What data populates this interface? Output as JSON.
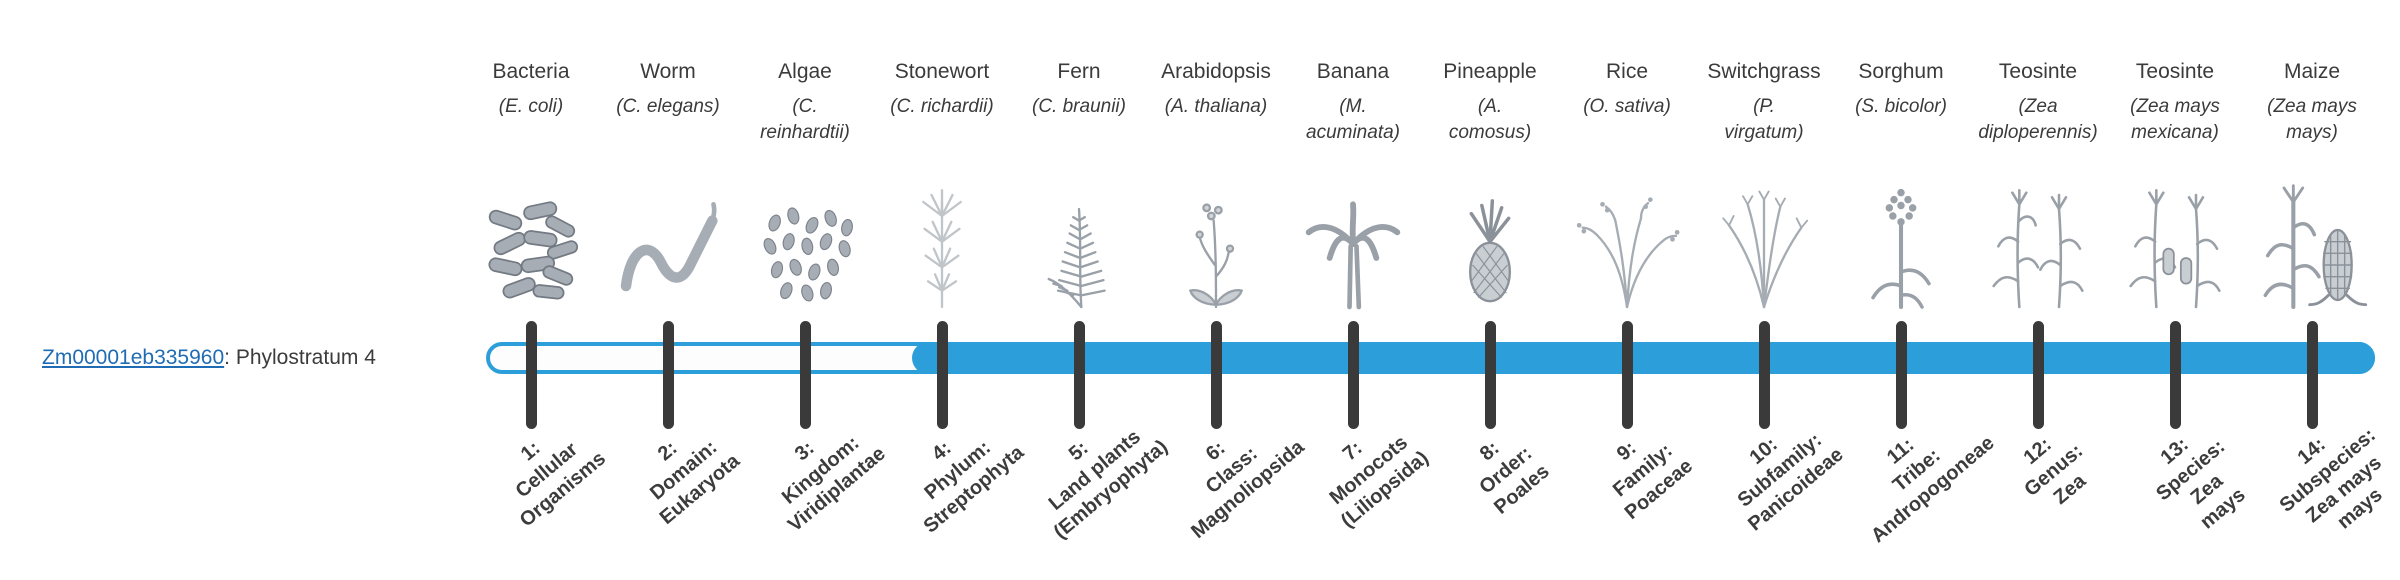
{
  "gene": {
    "id": "Zm00001eb335960",
    "suffix": ": Phylostratum 4",
    "link_color": "#1f6cb5"
  },
  "bar": {
    "color": "#2c9fda",
    "tick_color": "#3a3a3a",
    "filled_from_stratum": 4
  },
  "columns": [
    {
      "common": "Bacteria",
      "scientific": "(E. coli)",
      "icon": "bacteria-icon",
      "stratum_label": "1:\nCellular\nOrganisms"
    },
    {
      "common": "Worm",
      "scientific": "(C. elegans)",
      "icon": "worm-icon",
      "stratum_label": "2:\nDomain:\nEukaryota"
    },
    {
      "common": "Algae",
      "scientific": "(C.\nreinhardtii)",
      "icon": "algae-icon",
      "stratum_label": "3:\nKingdom:\nViridiplantae"
    },
    {
      "common": "Stonewort",
      "scientific": "(C. richardii)",
      "icon": "stonewort-icon",
      "stratum_label": "4:\nPhylum:\nStreptophyta"
    },
    {
      "common": "Fern",
      "scientific": "(C. braunii)",
      "icon": "fern-icon",
      "stratum_label": "5:\nLand plants\n(Embryophyta)"
    },
    {
      "common": "Arabidopsis",
      "scientific": "(A. thaliana)",
      "icon": "arabidopsis-icon",
      "stratum_label": "6:\nClass:\nMagnoliopsida"
    },
    {
      "common": "Banana",
      "scientific": "(M.\nacuminata)",
      "icon": "banana-icon",
      "stratum_label": "7:\nMonocots\n(Liliopsida)"
    },
    {
      "common": "Pineapple",
      "scientific": "(A.\ncomosus)",
      "icon": "pineapple-icon",
      "stratum_label": "8:\nOrder:\nPoales"
    },
    {
      "common": "Rice",
      "scientific": "(O. sativa)",
      "icon": "rice-icon",
      "stratum_label": "9:\nFamily:\nPoaceae"
    },
    {
      "common": "Switchgrass",
      "scientific": "(P.\nvirgatum)",
      "icon": "switchgrass-icon",
      "stratum_label": "10:\nSubfamily:\nPanicoideae"
    },
    {
      "common": "Sorghum",
      "scientific": "(S. bicolor)",
      "icon": "sorghum-icon",
      "stratum_label": "11:\nTribe:\nAndropogoneae"
    },
    {
      "common": "Teosinte",
      "scientific": "(Zea\ndiploperennis)",
      "icon": "teosinte-diploperennis-icon",
      "stratum_label": "12:\nGenus:\nZea"
    },
    {
      "common": "Teosinte",
      "scientific": "(Zea mays\nmexicana)",
      "icon": "teosinte-mexicana-icon",
      "stratum_label": "13:\nSpecies:\nZea\nmays"
    },
    {
      "common": "Maize",
      "scientific": "(Zea mays\nmays)",
      "icon": "maize-icon",
      "stratum_label": "14:\nSubspecies:\nZea mays\nmays"
    }
  ]
}
